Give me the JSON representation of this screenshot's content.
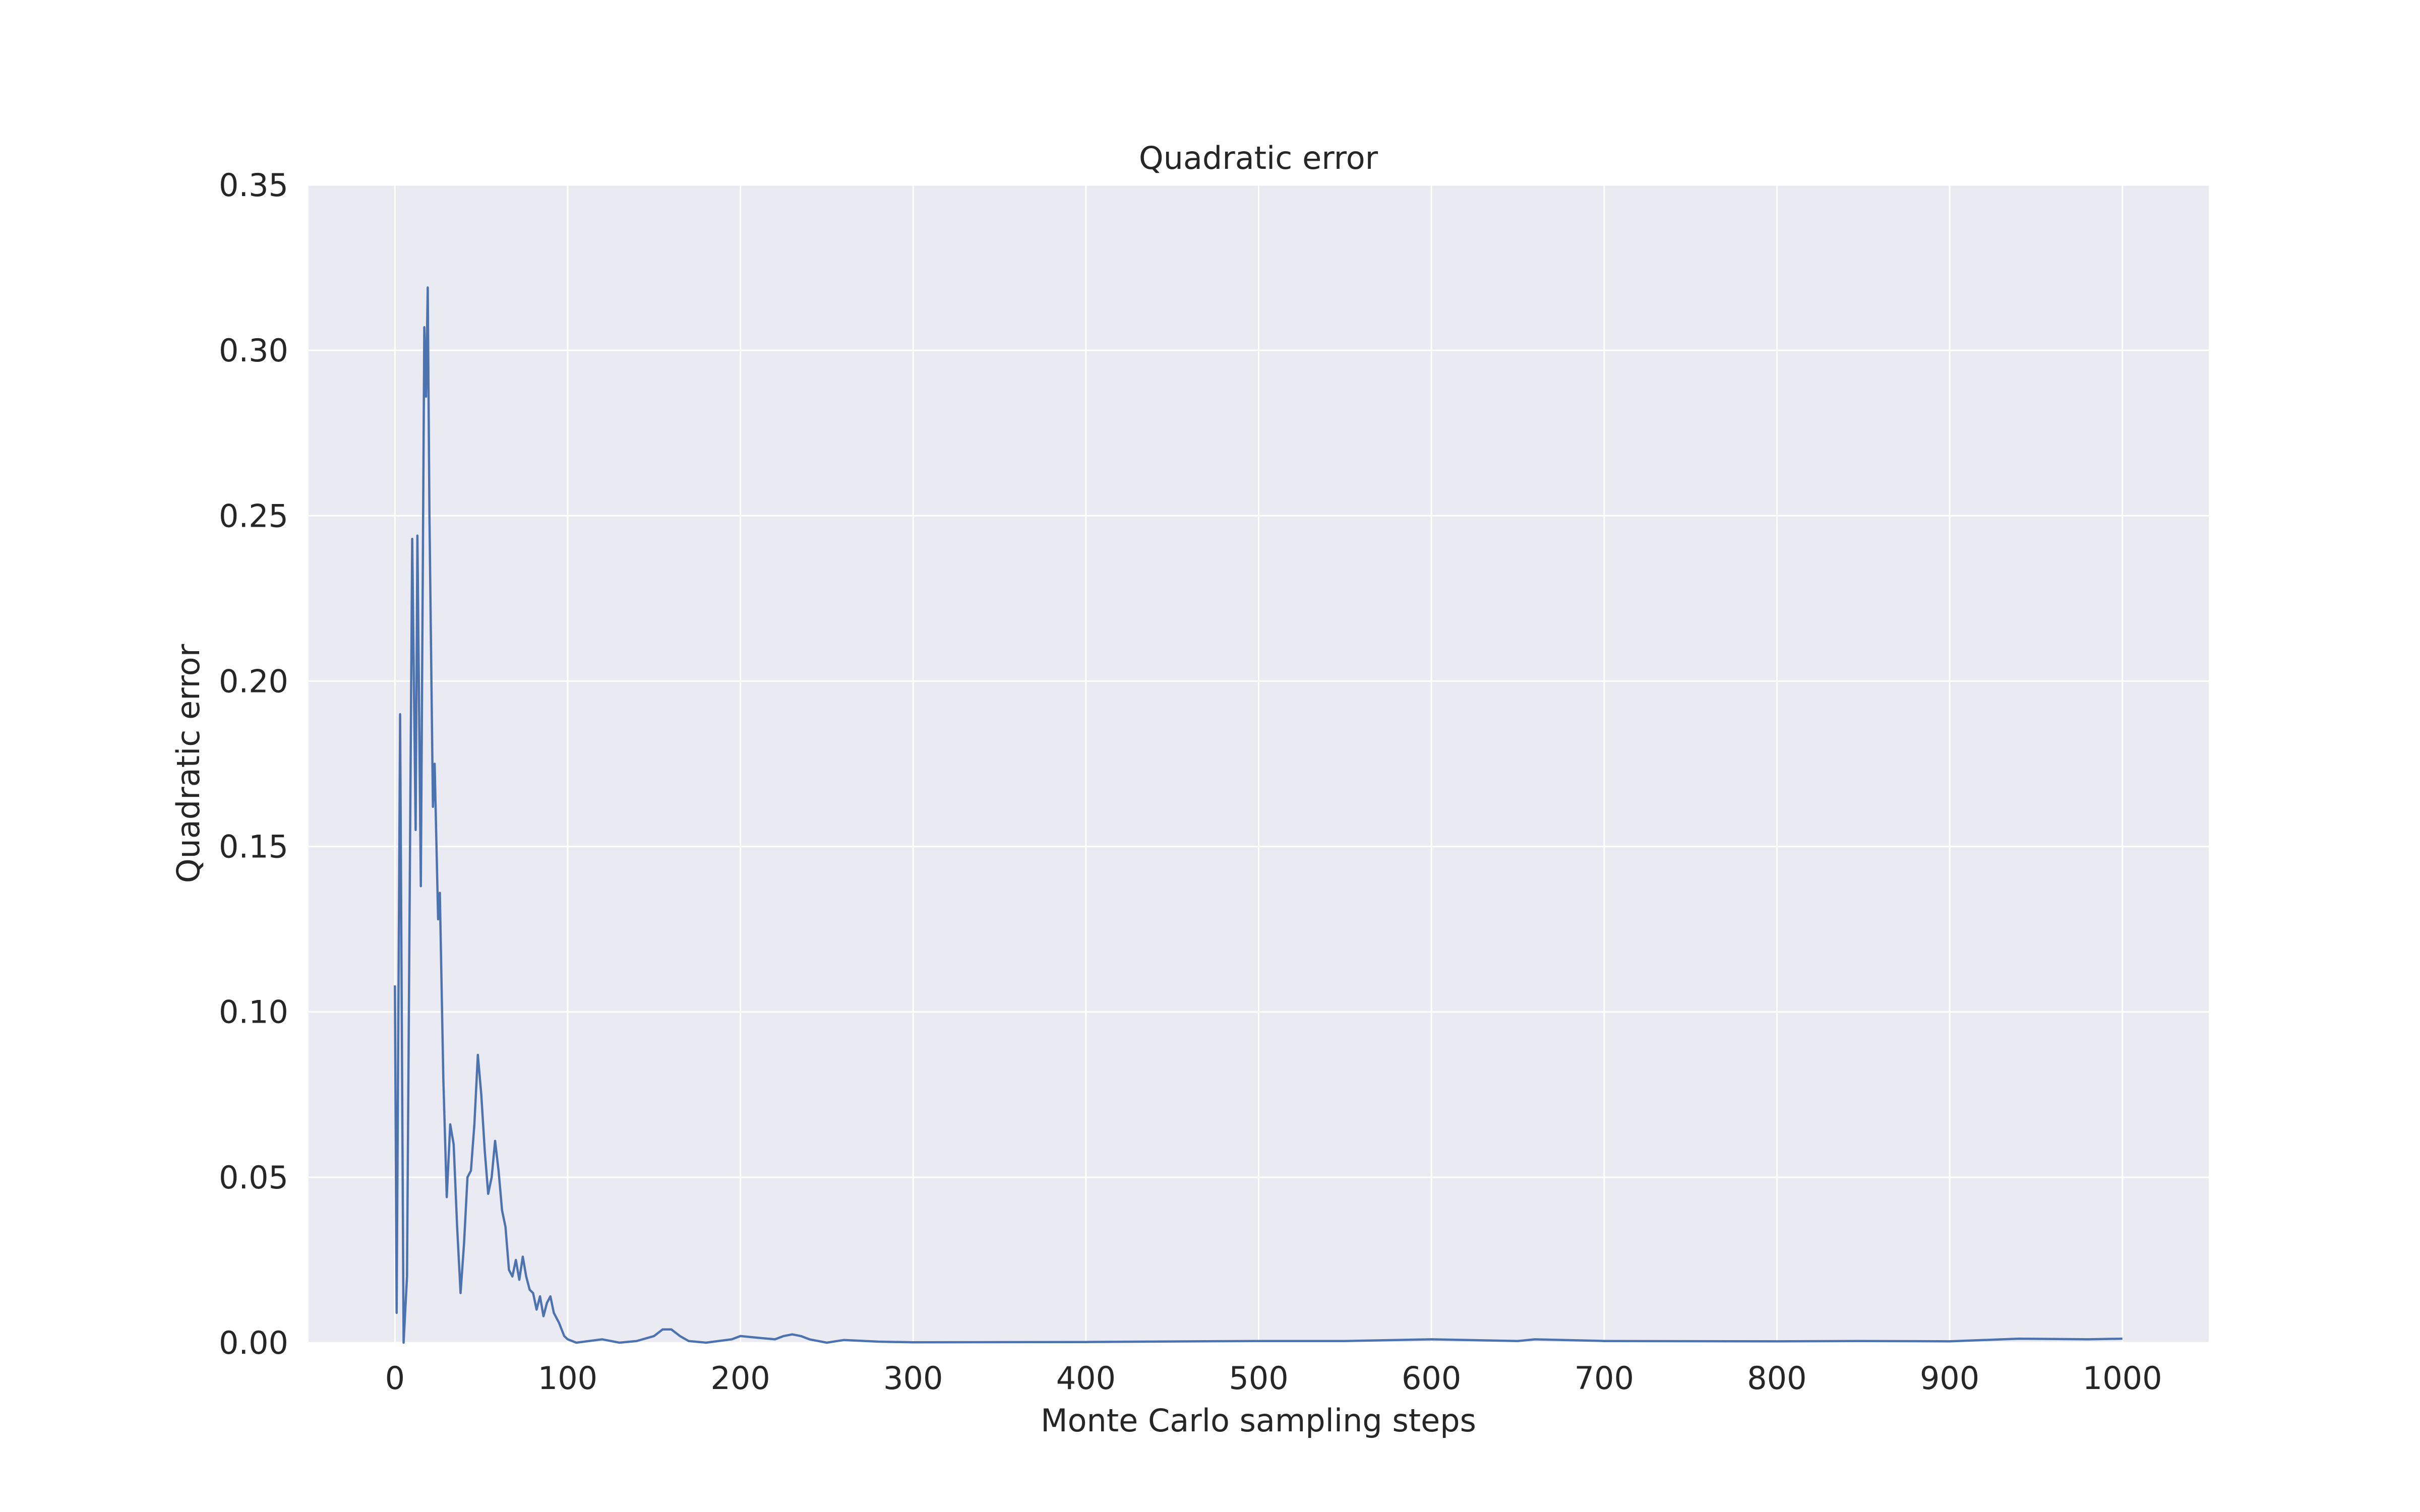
{
  "chart_data": {
    "type": "line",
    "title": "Quadratic error",
    "xlabel": "Monte Carlo sampling steps",
    "ylabel": "Quadratic error",
    "color": "#4c72b0",
    "grid": true,
    "xlim": [
      -50,
      1050
    ],
    "ylim": [
      0,
      0.35
    ],
    "xticks": [
      0,
      100,
      200,
      300,
      400,
      500,
      600,
      700,
      800,
      900,
      1000
    ],
    "yticks": [
      {
        "value": 0,
        "label": "0.00"
      },
      0.05,
      {
        "value": 0.1,
        "label": "0.10"
      },
      0.15,
      {
        "value": 0.2,
        "label": "0.20"
      },
      0.25,
      {
        "value": 0.3,
        "label": "0.30"
      },
      0.35
    ],
    "x": [
      0,
      1,
      3,
      5,
      7,
      10,
      12,
      13,
      15,
      17,
      18,
      19,
      20,
      22,
      23,
      25,
      26,
      28,
      30,
      32,
      34,
      36,
      38,
      40,
      42,
      44,
      46,
      48,
      50,
      52,
      54,
      56,
      58,
      60,
      62,
      64,
      66,
      68,
      70,
      72,
      74,
      76,
      78,
      80,
      82,
      84,
      86,
      88,
      90,
      92,
      95,
      98,
      100,
      105,
      120,
      130,
      140,
      150,
      155,
      160,
      165,
      170,
      180,
      195,
      200,
      210,
      220,
      225,
      230,
      235,
      240,
      250,
      260,
      280,
      300,
      400,
      500,
      550,
      600,
      650,
      660,
      700,
      800,
      850,
      900,
      940,
      980,
      1000
    ],
    "values": [
      0.108,
      0.009,
      0.19,
      0.0,
      0.02,
      0.243,
      0.155,
      0.244,
      0.138,
      0.307,
      0.286,
      0.319,
      0.25,
      0.162,
      0.175,
      0.128,
      0.136,
      0.08,
      0.044,
      0.066,
      0.06,
      0.035,
      0.015,
      0.03,
      0.05,
      0.052,
      0.066,
      0.087,
      0.075,
      0.058,
      0.045,
      0.05,
      0.061,
      0.052,
      0.04,
      0.035,
      0.022,
      0.02,
      0.025,
      0.019,
      0.026,
      0.02,
      0.016,
      0.015,
      0.01,
      0.014,
      0.008,
      0.012,
      0.014,
      0.009,
      0.006,
      0.002,
      0.001,
      0.0,
      0.001,
      0.0,
      0.0005,
      0.002,
      0.004,
      0.004,
      0.002,
      0.0005,
      0.0,
      0.001,
      0.002,
      0.0015,
      0.001,
      0.002,
      0.0025,
      0.002,
      0.001,
      0.0,
      0.0008,
      0.0003,
      0.0001,
      0.0002,
      0.0005,
      0.0005,
      0.001,
      0.0005,
      0.001,
      0.0005,
      0.0004,
      0.0005,
      0.0004,
      0.0012,
      0.001,
      0.0012
    ]
  }
}
